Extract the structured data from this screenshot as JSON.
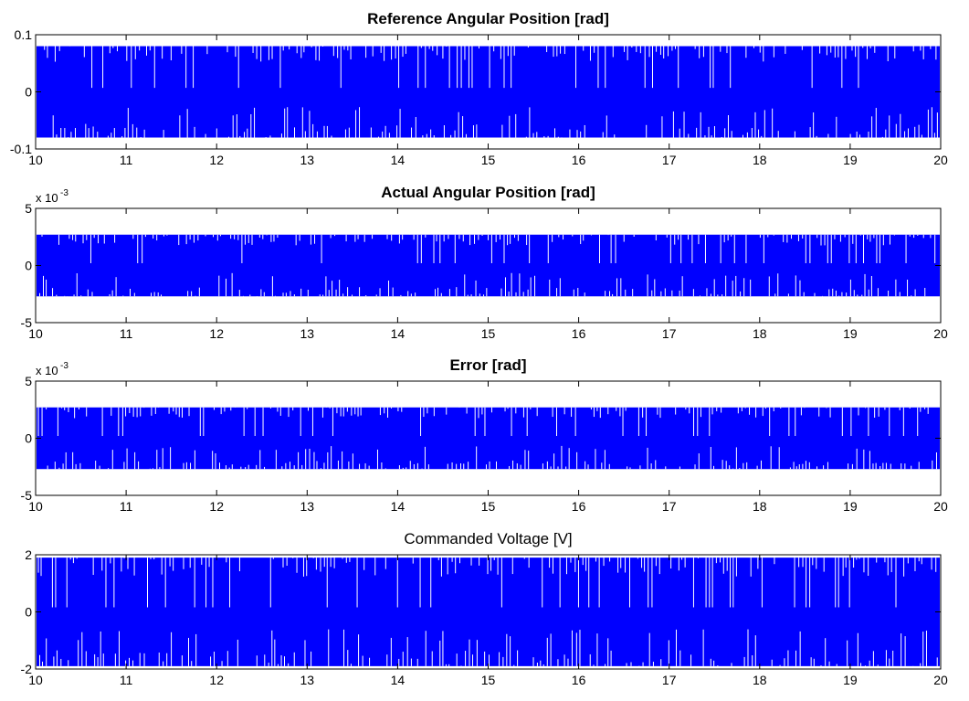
{
  "colors": {
    "signal": "#0000ff",
    "axes": "#000000",
    "background": "#ffffff"
  },
  "chart_data": [
    {
      "type": "line",
      "title": "Reference Angular Position [rad]",
      "title_bold": true,
      "xlim": [
        10,
        20
      ],
      "ylim": [
        -0.1,
        0.1
      ],
      "xticks": [
        "10",
        "11",
        "12",
        "13",
        "14",
        "15",
        "16",
        "17",
        "18",
        "19",
        "20"
      ],
      "yticks": [
        {
          "value": 0.1,
          "label": "0.1"
        },
        {
          "value": 0,
          "label": "0"
        },
        {
          "value": -0.1,
          "label": "-0.1"
        }
      ],
      "exponent_label": "",
      "exponent_power": "",
      "amplitude": 0.08,
      "dip_depth": 0.045,
      "series": [
        {
          "values_described_as": "dense oscillation between approx -0.08 and 0.08"
        }
      ]
    },
    {
      "type": "line",
      "title": "Actual Angular Position [rad]",
      "title_bold": true,
      "xlim": [
        10,
        20
      ],
      "ylim": [
        -5,
        5
      ],
      "xticks": [
        "10",
        "11",
        "12",
        "13",
        "14",
        "15",
        "16",
        "17",
        "18",
        "19",
        "20"
      ],
      "yticks": [
        {
          "value": 5,
          "label": "5"
        },
        {
          "value": 0,
          "label": "0"
        },
        {
          "value": -5,
          "label": "-5"
        }
      ],
      "exponent_label": "x 10",
      "exponent_power": "-3",
      "amplitude": 2.7,
      "dip_depth": 1.7,
      "series": [
        {
          "values_described_as": "dense oscillation between approx -2.7e-3 and 2.7e-3"
        }
      ]
    },
    {
      "type": "line",
      "title": "Error [rad]",
      "title_bold": true,
      "xlim": [
        10,
        20
      ],
      "ylim": [
        -5,
        5
      ],
      "xticks": [
        "10",
        "11",
        "12",
        "13",
        "14",
        "15",
        "16",
        "17",
        "18",
        "19",
        "20"
      ],
      "yticks": [
        {
          "value": 5,
          "label": "5"
        },
        {
          "value": 0,
          "label": "0"
        },
        {
          "value": -5,
          "label": "-5"
        }
      ],
      "exponent_label": "x 10",
      "exponent_power": "-3",
      "amplitude": 2.7,
      "dip_depth": 1.7,
      "series": [
        {
          "values_described_as": "dense oscillation between approx -2.7e-3 and 2.7e-3"
        }
      ]
    },
    {
      "type": "line",
      "title": "Commanded Voltage [V]",
      "title_bold": false,
      "xlim": [
        10,
        20
      ],
      "ylim": [
        -2,
        2
      ],
      "xticks": [
        "10",
        "11",
        "12",
        "13",
        "14",
        "15",
        "16",
        "17",
        "18",
        "19",
        "20"
      ],
      "yticks": [
        {
          "value": 2,
          "label": "2"
        },
        {
          "value": 0,
          "label": "0"
        },
        {
          "value": -2,
          "label": "-2"
        }
      ],
      "exponent_label": "",
      "exponent_power": "",
      "amplitude": 1.9,
      "dip_depth": 1.1,
      "series": [
        {
          "values_described_as": "dense oscillation between approx -1.9 and 1.9"
        }
      ]
    }
  ]
}
